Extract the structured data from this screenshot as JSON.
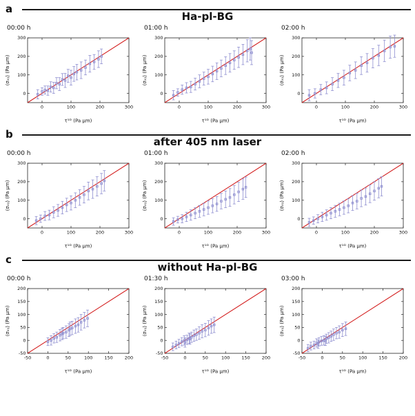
{
  "figure": {
    "sections": [
      {
        "letter": "a",
        "title": "Ha-pl-BG"
      },
      {
        "letter": "b",
        "title": "after 405 nm laser"
      },
      {
        "letter": "c",
        "title": "without Ha-pl-BG"
      }
    ]
  },
  "styles": {
    "line_color": "#d42222",
    "point_color": "#8f8fd0",
    "axis_color": "#222222"
  },
  "chart_data": [
    {
      "type": "scatter",
      "section": 0,
      "time": "00:00 h",
      "xlabel": "τ¹ᴰ (Pa μm)",
      "ylabel": "⟨σₓᵧ⟩ (Pa μm)",
      "xlim": [
        -50,
        300
      ],
      "ylim": [
        -50,
        300
      ],
      "xticks": [
        0,
        100,
        200,
        300
      ],
      "yticks": [
        0,
        100,
        200,
        300
      ],
      "identity_line": true,
      "points": [
        [
          -15,
          -5,
          25
        ],
        [
          0,
          10,
          20
        ],
        [
          10,
          18,
          22
        ],
        [
          20,
          15,
          25
        ],
        [
          30,
          35,
          28
        ],
        [
          40,
          30,
          30
        ],
        [
          50,
          55,
          30
        ],
        [
          60,
          50,
          35
        ],
        [
          70,
          75,
          32
        ],
        [
          80,
          70,
          38
        ],
        [
          90,
          95,
          35
        ],
        [
          100,
          85,
          40
        ],
        [
          110,
          105,
          40
        ],
        [
          120,
          115,
          42
        ],
        [
          135,
          125,
          45
        ],
        [
          150,
          140,
          40
        ],
        [
          165,
          160,
          45
        ],
        [
          180,
          170,
          40
        ],
        [
          195,
          185,
          45
        ],
        [
          205,
          200,
          40
        ]
      ]
    },
    {
      "type": "scatter",
      "section": 0,
      "time": "01:00 h",
      "xlabel": "τ¹ᴰ (Pa μm)",
      "ylabel": "⟨σₓᵧ⟩ (Pa μm)",
      "xlim": [
        -50,
        300
      ],
      "ylim": [
        -50,
        300
      ],
      "xticks": [
        0,
        100,
        200,
        300
      ],
      "yticks": [
        0,
        100,
        200,
        300
      ],
      "identity_line": true,
      "points": [
        [
          -20,
          -10,
          25
        ],
        [
          -5,
          5,
          20
        ],
        [
          10,
          20,
          25
        ],
        [
          25,
          30,
          28
        ],
        [
          40,
          35,
          30
        ],
        [
          55,
          50,
          32
        ],
        [
          70,
          65,
          35
        ],
        [
          85,
          80,
          35
        ],
        [
          100,
          90,
          40
        ],
        [
          115,
          105,
          42
        ],
        [
          130,
          120,
          45
        ],
        [
          145,
          135,
          45
        ],
        [
          160,
          150,
          48
        ],
        [
          175,
          165,
          50
        ],
        [
          190,
          180,
          50
        ],
        [
          205,
          195,
          55
        ],
        [
          220,
          210,
          55
        ],
        [
          235,
          230,
          60
        ],
        [
          245,
          240,
          60
        ],
        [
          250,
          220,
          65
        ]
      ]
    },
    {
      "type": "scatter",
      "section": 0,
      "time": "02:00 h",
      "xlabel": "τ¹ᴰ (Pa μm)",
      "ylabel": "⟨σₓᵧ⟩ (Pa μm)",
      "xlim": [
        -50,
        300
      ],
      "ylim": [
        -50,
        300
      ],
      "xticks": [
        0,
        100,
        200,
        300
      ],
      "yticks": [
        0,
        100,
        200,
        300
      ],
      "identity_line": true,
      "points": [
        [
          -25,
          -10,
          30
        ],
        [
          -5,
          0,
          25
        ],
        [
          15,
          20,
          28
        ],
        [
          35,
          30,
          32
        ],
        [
          55,
          50,
          35
        ],
        [
          75,
          70,
          38
        ],
        [
          95,
          85,
          40
        ],
        [
          115,
          110,
          42
        ],
        [
          135,
          125,
          45
        ],
        [
          155,
          150,
          48
        ],
        [
          175,
          165,
          50
        ],
        [
          195,
          190,
          52
        ],
        [
          215,
          205,
          55
        ],
        [
          235,
          230,
          58
        ],
        [
          255,
          250,
          60
        ],
        [
          270,
          255,
          60
        ]
      ]
    },
    {
      "type": "scatter",
      "section": 1,
      "time": "00:00 h",
      "xlabel": "τ¹ᴰ (Pa μm)",
      "ylabel": "⟨σₓᵧ⟩ (Pa μm)",
      "xlim": [
        -50,
        300
      ],
      "ylim": [
        -50,
        300
      ],
      "xticks": [
        0,
        100,
        200,
        300
      ],
      "yticks": [
        0,
        100,
        200,
        300
      ],
      "identity_line": true,
      "points": [
        [
          -20,
          -10,
          22
        ],
        [
          -5,
          0,
          20
        ],
        [
          10,
          15,
          24
        ],
        [
          25,
          20,
          26
        ],
        [
          40,
          35,
          30
        ],
        [
          55,
          45,
          32
        ],
        [
          70,
          60,
          34
        ],
        [
          85,
          75,
          36
        ],
        [
          100,
          85,
          38
        ],
        [
          115,
          100,
          40
        ],
        [
          130,
          115,
          42
        ],
        [
          145,
          130,
          45
        ],
        [
          160,
          150,
          48
        ],
        [
          175,
          160,
          50
        ],
        [
          190,
          175,
          52
        ],
        [
          205,
          190,
          55
        ],
        [
          215,
          205,
          55
        ]
      ]
    },
    {
      "type": "scatter",
      "section": 1,
      "time": "01:00 h",
      "xlabel": "τ¹ᴰ (Pa μm)",
      "ylabel": "⟨σₓᵧ⟩ (Pa μm)",
      "xlim": [
        -50,
        300
      ],
      "ylim": [
        -50,
        300
      ],
      "xticks": [
        0,
        100,
        200,
        300
      ],
      "yticks": [
        0,
        100,
        200,
        300
      ],
      "identity_line": true,
      "points": [
        [
          -20,
          -15,
          20
        ],
        [
          -5,
          -5,
          18
        ],
        [
          10,
          0,
          22
        ],
        [
          25,
          10,
          25
        ],
        [
          40,
          20,
          28
        ],
        [
          55,
          30,
          30
        ],
        [
          70,
          40,
          32
        ],
        [
          85,
          50,
          34
        ],
        [
          100,
          60,
          36
        ],
        [
          115,
          70,
          38
        ],
        [
          130,
          80,
          40
        ],
        [
          145,
          95,
          42
        ],
        [
          160,
          105,
          45
        ],
        [
          175,
          115,
          48
        ],
        [
          190,
          130,
          50
        ],
        [
          205,
          145,
          52
        ],
        [
          220,
          160,
          55
        ],
        [
          230,
          170,
          55
        ]
      ]
    },
    {
      "type": "scatter",
      "section": 1,
      "time": "02:00 h",
      "xlabel": "τ¹ᴰ (Pa μm)",
      "ylabel": "⟨σₓᵧ⟩ (Pa μm)",
      "xlim": [
        -50,
        300
      ],
      "ylim": [
        -50,
        300
      ],
      "xticks": [
        0,
        100,
        200,
        300
      ],
      "yticks": [
        0,
        100,
        200,
        300
      ],
      "identity_line": true,
      "points": [
        [
          -25,
          -20,
          22
        ],
        [
          -10,
          -10,
          20
        ],
        [
          5,
          0,
          22
        ],
        [
          20,
          10,
          25
        ],
        [
          35,
          20,
          28
        ],
        [
          50,
          30,
          30
        ],
        [
          65,
          40,
          32
        ],
        [
          80,
          50,
          34
        ],
        [
          95,
          60,
          36
        ],
        [
          110,
          70,
          38
        ],
        [
          125,
          85,
          40
        ],
        [
          140,
          95,
          42
        ],
        [
          155,
          110,
          45
        ],
        [
          170,
          120,
          46
        ],
        [
          185,
          135,
          48
        ],
        [
          200,
          150,
          50
        ],
        [
          215,
          165,
          52
        ],
        [
          225,
          175,
          52
        ]
      ]
    },
    {
      "type": "scatter",
      "section": 2,
      "time": "00:00 h",
      "xlabel": "τ¹ᴰ (Pa μm)",
      "ylabel": "⟨σₓᵧ⟩ (Pa μm)",
      "xlim": [
        -50,
        200
      ],
      "ylim": [
        -50,
        200
      ],
      "xticks": [
        -50,
        0,
        50,
        100,
        150,
        200
      ],
      "yticks": [
        -50,
        0,
        50,
        100,
        150,
        200
      ],
      "identity_line": true,
      "points": [
        [
          0,
          -5,
          15
        ],
        [
          8,
          0,
          18
        ],
        [
          15,
          8,
          18
        ],
        [
          22,
          12,
          20
        ],
        [
          30,
          20,
          22
        ],
        [
          38,
          28,
          22
        ],
        [
          45,
          32,
          24
        ],
        [
          52,
          40,
          25
        ],
        [
          60,
          48,
          26
        ],
        [
          68,
          55,
          28
        ],
        [
          75,
          60,
          28
        ],
        [
          82,
          70,
          30
        ],
        [
          90,
          78,
          30
        ],
        [
          98,
          85,
          32
        ],
        [
          55,
          45,
          26
        ],
        [
          35,
          25,
          22
        ]
      ]
    },
    {
      "type": "scatter",
      "section": 2,
      "time": "01:30 h",
      "xlabel": "τ¹ᴰ (Pa μm)",
      "ylabel": "⟨σₓᵧ⟩ (Pa μm)",
      "xlim": [
        -50,
        200
      ],
      "ylim": [
        -50,
        200
      ],
      "xticks": [
        -50,
        0,
        50,
        100,
        150,
        200
      ],
      "yticks": [
        -50,
        0,
        50,
        100,
        150,
        200
      ],
      "identity_line": true,
      "points": [
        [
          -30,
          -25,
          15
        ],
        [
          -22,
          -18,
          15
        ],
        [
          -15,
          -12,
          16
        ],
        [
          -8,
          -5,
          16
        ],
        [
          -2,
          0,
          18
        ],
        [
          5,
          2,
          18
        ],
        [
          10,
          8,
          20
        ],
        [
          16,
          12,
          20
        ],
        [
          22,
          18,
          22
        ],
        [
          28,
          22,
          22
        ],
        [
          35,
          28,
          24
        ],
        [
          42,
          35,
          25
        ],
        [
          50,
          40,
          26
        ],
        [
          58,
          48,
          28
        ],
        [
          65,
          55,
          28
        ],
        [
          72,
          60,
          30
        ],
        [
          0,
          -8,
          18
        ],
        [
          12,
          5,
          20
        ]
      ]
    },
    {
      "type": "scatter",
      "section": 2,
      "time": "03:00 h",
      "xlabel": "τ¹ᴰ (Pa μm)",
      "ylabel": "⟨σₓᵧ⟩ (Pa μm)",
      "xlim": [
        -50,
        200
      ],
      "ylim": [
        -50,
        200
      ],
      "xticks": [
        -50,
        0,
        50,
        100,
        150,
        200
      ],
      "yticks": [
        -50,
        0,
        50,
        100,
        150,
        200
      ],
      "identity_line": true,
      "points": [
        [
          -35,
          -30,
          14
        ],
        [
          -28,
          -22,
          15
        ],
        [
          -20,
          -18,
          15
        ],
        [
          -14,
          -10,
          16
        ],
        [
          -8,
          -6,
          16
        ],
        [
          -2,
          -2,
          17
        ],
        [
          4,
          0,
          18
        ],
        [
          10,
          6,
          18
        ],
        [
          16,
          10,
          20
        ],
        [
          22,
          16,
          20
        ],
        [
          28,
          22,
          22
        ],
        [
          35,
          28,
          22
        ],
        [
          42,
          32,
          24
        ],
        [
          50,
          40,
          25
        ],
        [
          58,
          45,
          26
        ],
        [
          -10,
          -15,
          16
        ],
        [
          8,
          -2,
          18
        ]
      ]
    }
  ]
}
